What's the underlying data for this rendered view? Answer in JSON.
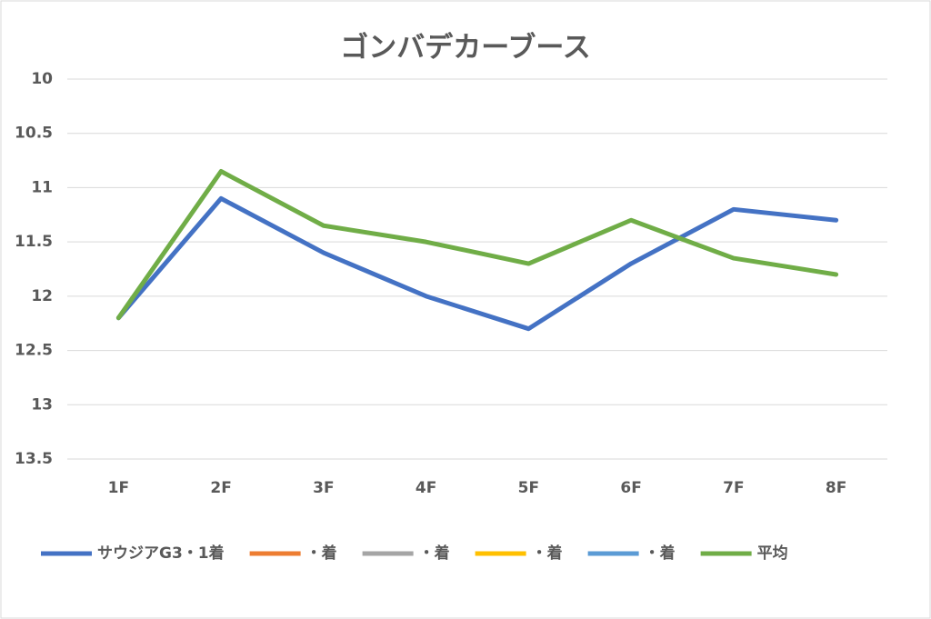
{
  "chart_data": {
    "type": "line",
    "title": "ゴンバデカーブース",
    "categories": [
      "1F",
      "2F",
      "3F",
      "4F",
      "5F",
      "6F",
      "7F",
      "8F"
    ],
    "series": [
      {
        "name": "サウジアG3・1着",
        "color": "#4472c4",
        "values": [
          12.2,
          11.1,
          11.6,
          12.0,
          12.3,
          11.7,
          11.2,
          11.3
        ]
      },
      {
        "name": "・着",
        "color": "#ed7d31",
        "values": [
          null,
          null,
          null,
          null,
          null,
          null,
          null,
          null
        ]
      },
      {
        "name": "・着",
        "color": "#a5a5a5",
        "values": [
          null,
          null,
          null,
          null,
          null,
          null,
          null,
          null
        ]
      },
      {
        "name": "・着",
        "color": "#ffc000",
        "values": [
          null,
          null,
          null,
          null,
          null,
          null,
          null,
          null
        ]
      },
      {
        "name": "・着",
        "color": "#5b9bd5",
        "values": [
          null,
          null,
          null,
          null,
          null,
          null,
          null,
          null
        ]
      },
      {
        "name": "平均",
        "color": "#70ad47",
        "values": [
          12.2,
          10.85,
          11.35,
          11.5,
          11.7,
          11.3,
          11.65,
          11.8
        ]
      }
    ],
    "ylim": [
      10,
      13.5
    ],
    "yticks": [
      10,
      10.5,
      11,
      11.5,
      12,
      12.5,
      13,
      13.5
    ],
    "y_inverted": true,
    "grid": true,
    "legend": "bottom"
  }
}
